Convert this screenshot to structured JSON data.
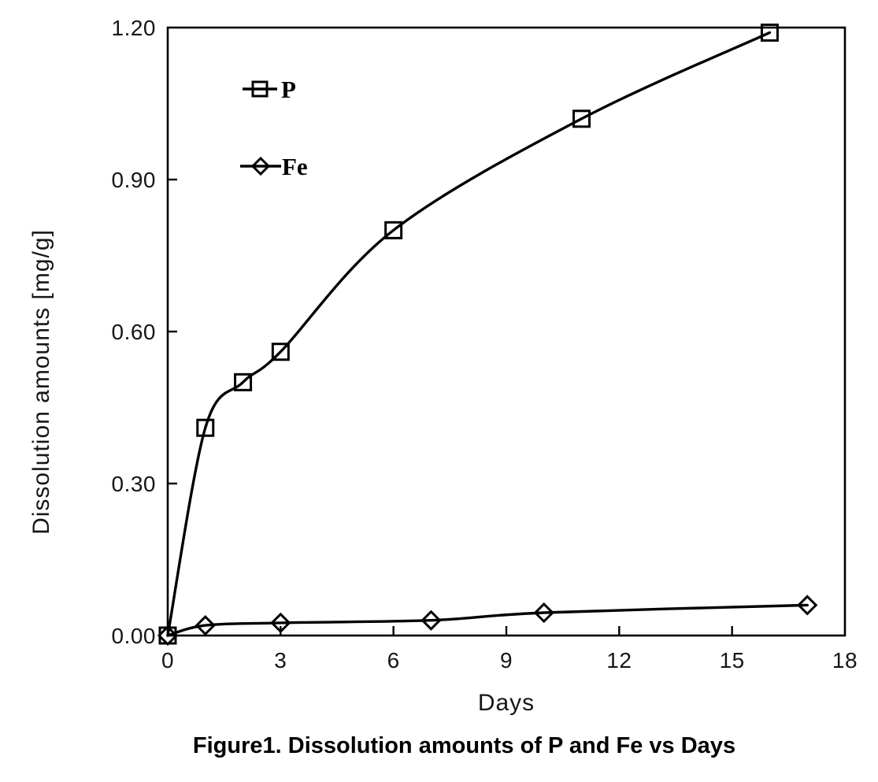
{
  "figure": {
    "caption": "Figure1. Dissolution amounts of P and Fe vs Days"
  },
  "colors": {
    "line": "#000000",
    "text": "#161616",
    "background": "#ffffff"
  },
  "chart_data": {
    "type": "line",
    "title": "",
    "xlabel": "Days",
    "ylabel": "Dissolution amounts [mg/g]",
    "xlim": [
      0,
      18
    ],
    "ylim": [
      0.0,
      1.2
    ],
    "x_ticks": [
      0,
      3,
      6,
      9,
      12,
      15,
      18
    ],
    "x_tick_labels": [
      "0",
      "3",
      "6",
      "9",
      "12",
      "15",
      "18"
    ],
    "y_ticks": [
      0.0,
      0.3,
      0.6,
      0.9,
      1.2
    ],
    "y_tick_labels": [
      "0.00",
      "0.30",
      "0.60",
      "0.90",
      "1.20"
    ],
    "grid": false,
    "legend_position": "inside-upper-left",
    "series": [
      {
        "name": "P",
        "marker": "square",
        "smooth": true,
        "x": [
          0,
          1,
          2,
          3,
          6,
          11,
          16
        ],
        "y": [
          0.0,
          0.41,
          0.5,
          0.56,
          0.8,
          1.02,
          1.19
        ]
      },
      {
        "name": "Fe",
        "marker": "diamond",
        "smooth": true,
        "x": [
          0,
          1,
          3,
          7,
          10,
          17
        ],
        "y": [
          0.0,
          0.02,
          0.025,
          0.03,
          0.045,
          0.06
        ]
      }
    ]
  }
}
